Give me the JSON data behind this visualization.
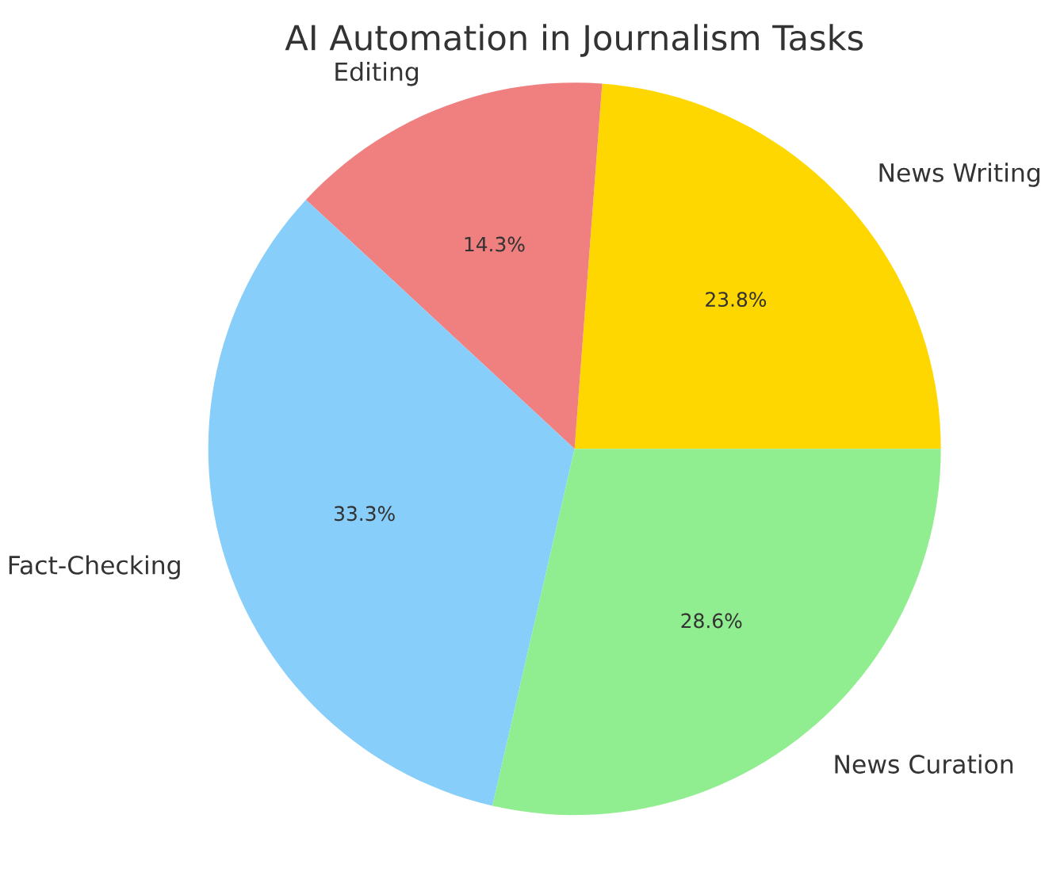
{
  "chart_data": {
    "type": "pie",
    "title": "AI Automation in Journalism Tasks",
    "categories": [
      "News Writing",
      "Editing",
      "Fact-Checking",
      "News Curation"
    ],
    "values": [
      23.8,
      14.3,
      33.3,
      28.6
    ],
    "value_labels": [
      "23.8%",
      "14.3%",
      "33.3%",
      "28.6%"
    ],
    "colors": [
      "#ffd700",
      "#f08080",
      "#87cefa",
      "#90ee90"
    ]
  }
}
